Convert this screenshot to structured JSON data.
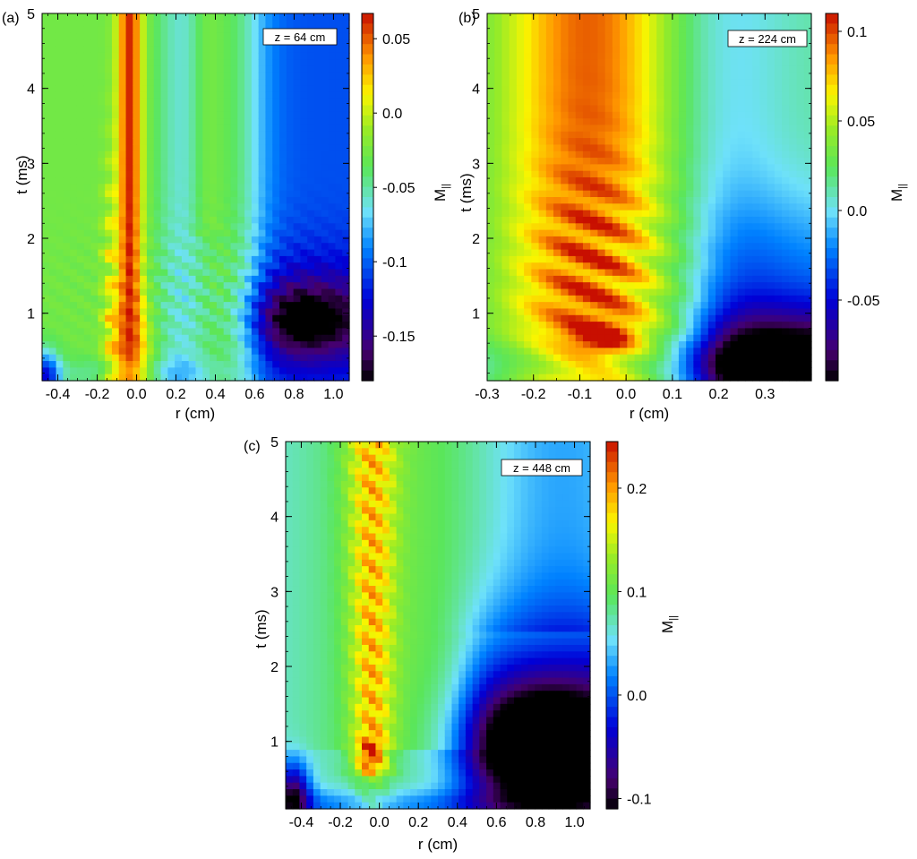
{
  "chart_data": [
    {
      "type": "heatmap",
      "panel_label": "(a)",
      "annotation": "z = 64 cm",
      "xlabel": "r (cm)",
      "ylabel": "t (ms)",
      "colorbar_label": "M",
      "colorbar_label_sub": "||",
      "xlim": [
        -0.48,
        1.08
      ],
      "ylim": [
        0.1,
        5.0
      ],
      "clim": [
        -0.18,
        0.067
      ],
      "x_ticks": [
        -0.4,
        -0.2,
        0.0,
        0.2,
        0.4,
        0.6,
        0.8,
        1.0
      ],
      "x_tick_labels": [
        "-0.4",
        "-0.2",
        "0.0",
        "0.2",
        "0.4",
        "0.6",
        "0.8",
        "1.0"
      ],
      "y_ticks": [
        1,
        2,
        3,
        4,
        5
      ],
      "y_tick_labels": [
        "1",
        "2",
        "3",
        "4",
        "5"
      ],
      "colorbar_ticks": [
        0.05,
        0.0,
        -0.05,
        -0.1,
        -0.15
      ],
      "colorbar_tick_labels": [
        "0.05",
        "0.0",
        "-0.05",
        "-0.1",
        "-0.15"
      ],
      "colormap": "rainbow",
      "features": [
        {
          "r": -0.04,
          "value": 0.06,
          "description": "red column near r = 0 over t = 0.1-5 ms"
        },
        {
          "r": 0.8,
          "value": -0.17,
          "description": "dark blue region at large r, t = 0.5-1.5 ms"
        }
      ]
    },
    {
      "type": "heatmap",
      "panel_label": "(b)",
      "annotation": "z = 224 cm",
      "xlabel": "r (cm)",
      "ylabel": "t (ms)",
      "colorbar_label": "M",
      "colorbar_label_sub": "||",
      "xlim": [
        -0.3,
        0.4
      ],
      "ylim": [
        0.1,
        5.0
      ],
      "clim": [
        -0.095,
        0.11
      ],
      "x_ticks": [
        -0.3,
        -0.2,
        -0.1,
        0.0,
        0.1,
        0.2,
        0.3
      ],
      "x_tick_labels": [
        "-0.3",
        "-0.2",
        "-0.1",
        "0.0",
        "0.1",
        "0.2",
        "0.3"
      ],
      "y_ticks": [
        1,
        2,
        3,
        4,
        5
      ],
      "y_tick_labels": [
        "1",
        "2",
        "3",
        "4",
        "5"
      ],
      "colorbar_ticks": [
        0.1,
        0.05,
        0.0,
        -0.05
      ],
      "colorbar_tick_labels": [
        "0.1",
        "0.05",
        "0.0",
        "-0.05"
      ],
      "colormap": "rainbow",
      "features": [
        {
          "r": -0.08,
          "value": 0.09,
          "description": "broad red region centered near r = -0.08"
        },
        {
          "r": 0.3,
          "value": -0.09,
          "description": "dark region at large r near t = 0.3 ms"
        }
      ]
    },
    {
      "type": "heatmap",
      "panel_label": "(c)",
      "annotation": "z = 448 cm",
      "xlabel": "r (cm)",
      "ylabel": "t (ms)",
      "colorbar_label": "M",
      "colorbar_label_sub": "||",
      "xlim": [
        -0.48,
        1.08
      ],
      "ylim": [
        0.1,
        5.0
      ],
      "clim": [
        -0.11,
        0.245
      ],
      "x_ticks": [
        -0.4,
        -0.2,
        0.0,
        0.2,
        0.4,
        0.6,
        0.8,
        1.0
      ],
      "x_tick_labels": [
        "-0.4",
        "-0.2",
        "0.0",
        "0.2",
        "0.4",
        "0.6",
        "0.8",
        "1.0"
      ],
      "y_ticks": [
        1,
        2,
        3,
        4,
        5
      ],
      "y_tick_labels": [
        "1",
        "2",
        "3",
        "4",
        "5"
      ],
      "colorbar_ticks": [
        0.2,
        0.1,
        0.0,
        -0.1
      ],
      "colorbar_tick_labels": [
        "0.2",
        "0.1",
        "0.0",
        "-0.1"
      ],
      "colormap": "rainbow",
      "features": [
        {
          "r": -0.04,
          "value": 0.21,
          "description": "oscillating red column near r = 0"
        },
        {
          "r": 0.85,
          "value": -0.1,
          "description": "dark region at large r near t = 0.8 ms"
        }
      ]
    }
  ]
}
